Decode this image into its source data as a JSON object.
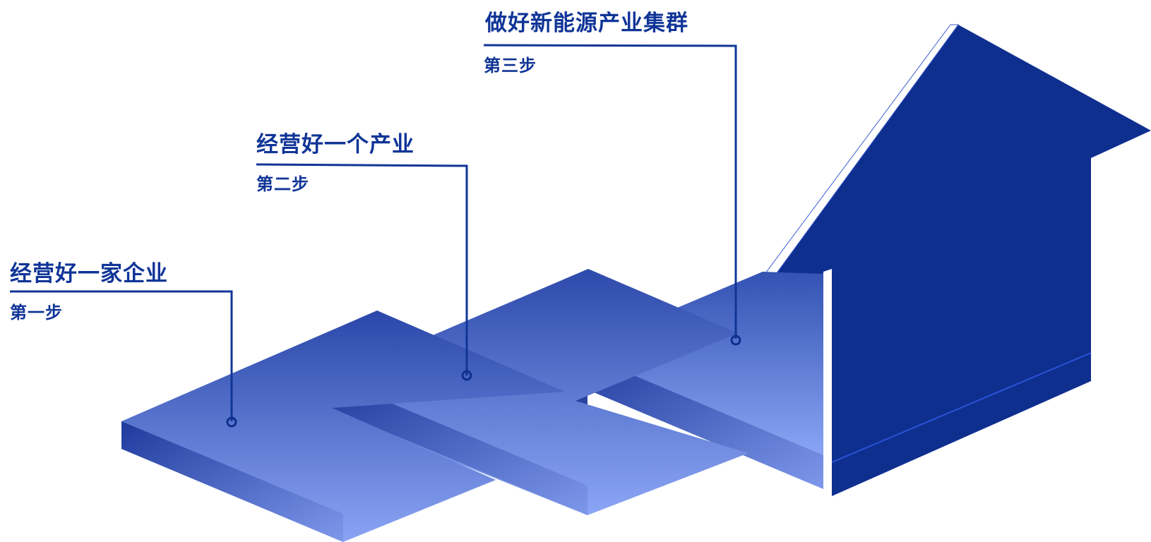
{
  "steps": [
    {
      "title": "经营好一家企业",
      "label": "第一步"
    },
    {
      "title": "经营好一个产业",
      "label": "第二步"
    },
    {
      "title": "做好新能源产业集群",
      "label": "第三步"
    }
  ],
  "colors": {
    "text": "#103597",
    "leader_line": "#103597",
    "arrow_dark": "#0f2f8f",
    "step_top_dark": "#2a47a9",
    "step_top_light": "#87a2f2",
    "highlight": "#ffffff"
  },
  "icons": {
    "arrow": "upward-arrow-icon",
    "marker": "circle-marker-icon"
  }
}
